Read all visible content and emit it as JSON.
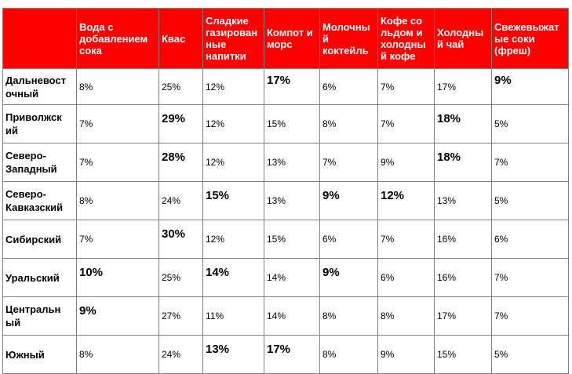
{
  "table": {
    "headers": [
      "",
      "Вода с добавлением сока",
      "Квас",
      "Сладкие газированные напитки",
      "Компот и морс",
      "Молочный коктейль",
      "Кофе со льдом и холодный кофе",
      "Холодный чай",
      "Свежевыжатые соки (фреш)"
    ],
    "header_lines": [
      [],
      [
        "Вода с",
        "добавлением",
        "сока"
      ],
      [
        "Квас"
      ],
      [
        "Сладкие",
        "газирован",
        "ные",
        "напитки"
      ],
      [
        "Компот и",
        "морс"
      ],
      [
        "Молочны",
        "й",
        "коктейль"
      ],
      [
        "Кофе со",
        "льдом и",
        "холодны",
        "й кофе"
      ],
      [
        "Холодны",
        "й чай"
      ],
      [
        "Свежевыжат",
        "ые соки",
        "(фреш)"
      ]
    ],
    "rows": [
      {
        "region": "Дальневосточный",
        "region_lines": [
          "Дальневост",
          "очный"
        ],
        "values": [
          "8%",
          "25%",
          "12%",
          "17%",
          "6%",
          "7%",
          "17%",
          "9%"
        ],
        "bold": [
          false,
          false,
          false,
          true,
          false,
          false,
          false,
          true
        ]
      },
      {
        "region": "Приволжский",
        "region_lines": [
          "Приволжск",
          "ий"
        ],
        "values": [
          "7%",
          "29%",
          "12%",
          "15%",
          "8%",
          "7%",
          "18%",
          "5%"
        ],
        "bold": [
          false,
          true,
          false,
          false,
          false,
          false,
          true,
          false
        ]
      },
      {
        "region": "Северо-Западный",
        "region_lines": [
          "Северо-",
          "Западный"
        ],
        "values": [
          "7%",
          "28%",
          "12%",
          "13%",
          "7%",
          "9%",
          "18%",
          "7%"
        ],
        "bold": [
          false,
          true,
          false,
          false,
          false,
          false,
          true,
          false
        ]
      },
      {
        "region": "Северо-Кавказский",
        "region_lines": [
          "Северо-",
          "Кавказский"
        ],
        "values": [
          "8%",
          "24%",
          "15%",
          "13%",
          "9%",
          "12%",
          "13%",
          "5%"
        ],
        "bold": [
          false,
          false,
          true,
          false,
          true,
          true,
          false,
          false
        ]
      },
      {
        "region": "Сибирский",
        "region_lines": [
          "Сибирский"
        ],
        "values": [
          "7%",
          "30%",
          "12%",
          "15%",
          "6%",
          "7%",
          "16%",
          "6%"
        ],
        "bold": [
          false,
          true,
          false,
          false,
          false,
          false,
          false,
          false
        ]
      },
      {
        "region": "Уральский",
        "region_lines": [
          "Уральский"
        ],
        "values": [
          "10%",
          "25%",
          "14%",
          "14%",
          "9%",
          "6%",
          "16%",
          "7%"
        ],
        "bold": [
          true,
          false,
          true,
          false,
          true,
          false,
          false,
          false
        ]
      },
      {
        "region": "Центральный",
        "region_lines": [
          "Центральн",
          "ый"
        ],
        "values": [
          "9%",
          "27%",
          "11%",
          "14%",
          "8%",
          "8%",
          "17%",
          "7%"
        ],
        "bold": [
          true,
          false,
          false,
          false,
          false,
          false,
          false,
          false
        ]
      },
      {
        "region": "Южный",
        "region_lines": [
          "Южный"
        ],
        "values": [
          "8%",
          "24%",
          "13%",
          "17%",
          "8%",
          "9%",
          "15%",
          "5%"
        ],
        "bold": [
          false,
          false,
          true,
          true,
          false,
          false,
          false,
          false
        ]
      }
    ]
  },
  "colors": {
    "header_bg": "#ff0000",
    "header_text": "#ffffff",
    "border": "#808080"
  }
}
